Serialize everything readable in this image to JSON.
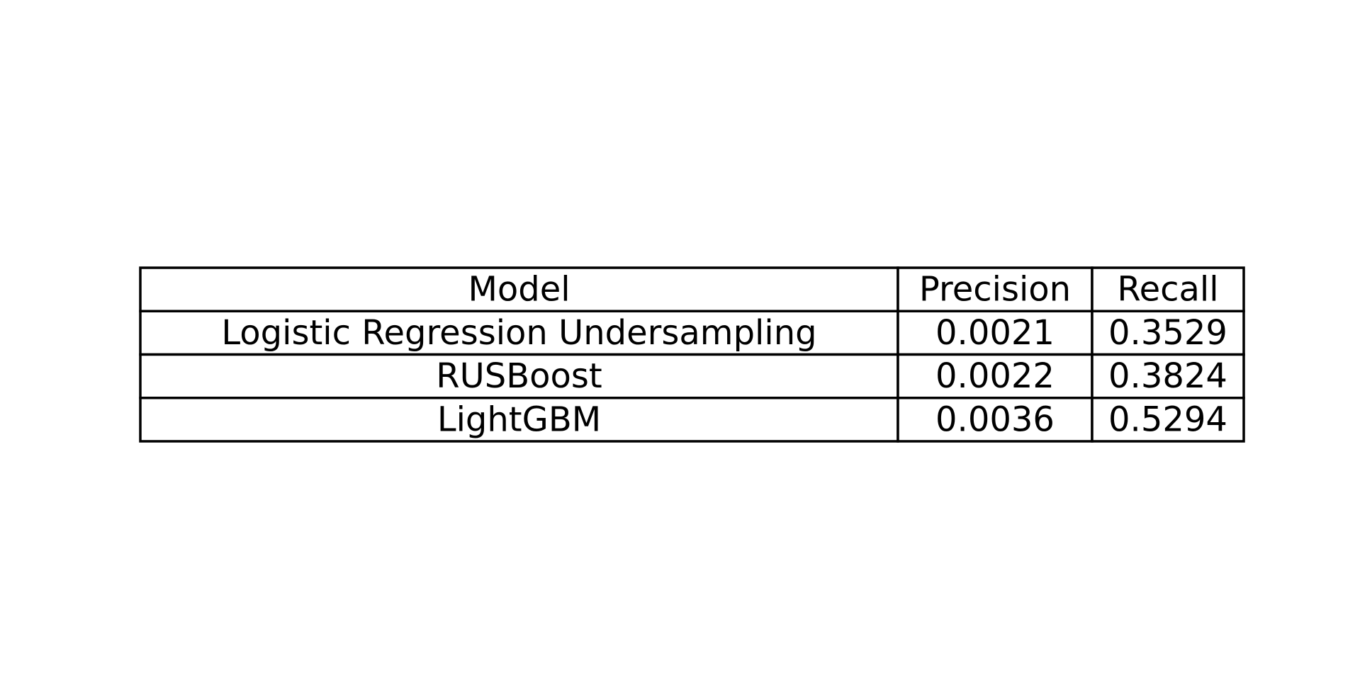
{
  "chart_data": {
    "type": "table",
    "columns": [
      "Model",
      "Precision",
      "Recall"
    ],
    "rows": [
      [
        "Logistic Regression Undersampling",
        "0.0021",
        "0.3529"
      ],
      [
        "RUSBoost",
        "0.0022",
        "0.3824"
      ],
      [
        "LightGBM",
        "0.0036",
        "0.5294"
      ]
    ]
  }
}
